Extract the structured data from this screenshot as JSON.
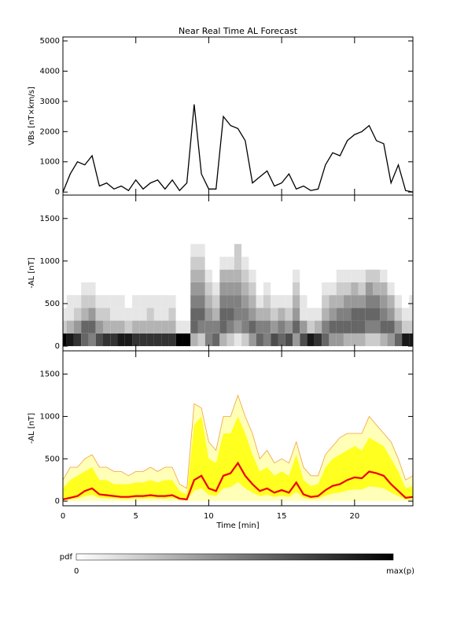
{
  "chart_data": [
    {
      "type": "line",
      "title": "Near Real Time AL Forecast",
      "ylabel": "VBs [nT×km/s]",
      "x": [
        0,
        0.5,
        1,
        1.5,
        2,
        2.5,
        3,
        3.5,
        4,
        4.5,
        5,
        5.5,
        6,
        6.5,
        7,
        7.5,
        8,
        8.5,
        9,
        9.5,
        10,
        10.5,
        11,
        11.5,
        12,
        12.5,
        13,
        13.5,
        14,
        14.5,
        15,
        15.5,
        16,
        16.5,
        17,
        17.5,
        18,
        18.5,
        19,
        19.5,
        20,
        20.5,
        21,
        21.5,
        22,
        22.5,
        23,
        23.5,
        24
      ],
      "series": [
        {
          "color": "#000000",
          "values": [
            0,
            600,
            1000,
            900,
            1200,
            200,
            300,
            100,
            200,
            50,
            400,
            100,
            300,
            400,
            100,
            400,
            50,
            300,
            2900,
            600,
            100,
            100,
            2500,
            2200,
            2100,
            1700,
            300,
            500,
            700,
            200,
            300,
            600,
            100,
            200,
            50,
            100,
            900,
            1300,
            1200,
            1700,
            1900,
            2000,
            2200,
            1700,
            1600,
            300,
            900,
            50,
            0
          ]
        }
      ],
      "xlim": [
        0,
        24
      ],
      "xticks": [
        0,
        5,
        10,
        15,
        20
      ],
      "ylim": [
        -100,
        5130
      ],
      "yticks": [
        0,
        1000,
        2000,
        3000,
        4000,
        5000
      ]
    },
    {
      "type": "heatmap",
      "ylabel": "-AL [nT]",
      "x": [
        0,
        0.5,
        1,
        1.5,
        2,
        2.5,
        3,
        3.5,
        4,
        4.5,
        5,
        5.5,
        6,
        6.5,
        7,
        7.5,
        8,
        8.5,
        9,
        9.5,
        10,
        10.5,
        11,
        11.5,
        12,
        12.5,
        13,
        13.5,
        14,
        14.5,
        15,
        15.5,
        16,
        16.5,
        17,
        17.5,
        18,
        18.5,
        19,
        19.5,
        20,
        20.5,
        21,
        21.5,
        22,
        22.5,
        23,
        23.5,
        24
      ],
      "ybins": [
        0,
        150,
        300,
        450,
        600,
        750,
        900,
        1050,
        1200
      ],
      "z": [
        [
          1,
          0.9,
          0.8,
          0.6,
          0.5,
          0.7,
          0.8,
          0.8,
          0.9,
          0.9,
          0.8,
          0.8,
          0.8,
          0.8,
          0.8,
          0.8,
          1,
          1,
          0.3,
          0.2,
          0.5,
          0.6,
          0.3,
          0.2,
          0.1,
          0.2,
          0.4,
          0.6,
          0.5,
          0.7,
          0.6,
          0.7,
          0.4,
          0.7,
          0.9,
          0.8,
          0.6,
          0.4,
          0.4,
          0.3,
          0.3,
          0.3,
          0.2,
          0.2,
          0.3,
          0.4,
          0.6,
          0.9,
          0.9
        ],
        [
          0.2,
          0.3,
          0.4,
          0.6,
          0.6,
          0.4,
          0.3,
          0.3,
          0.3,
          0.2,
          0.3,
          0.3,
          0.3,
          0.3,
          0.3,
          0.3,
          0.1,
          0.1,
          0.6,
          0.5,
          0.5,
          0.5,
          0.6,
          0.5,
          0.4,
          0.5,
          0.6,
          0.5,
          0.5,
          0.4,
          0.5,
          0.4,
          0.6,
          0.4,
          0.2,
          0.3,
          0.5,
          0.6,
          0.6,
          0.6,
          0.6,
          0.6,
          0.5,
          0.5,
          0.6,
          0.6,
          0.4,
          0.2,
          0.2
        ],
        [
          0.1,
          0.1,
          0.2,
          0.3,
          0.4,
          0.2,
          0.2,
          0.1,
          0.1,
          0.1,
          0.1,
          0.1,
          0.2,
          0.1,
          0.1,
          0.2,
          0,
          0,
          0.6,
          0.6,
          0.4,
          0.3,
          0.6,
          0.6,
          0.5,
          0.5,
          0.4,
          0.3,
          0.3,
          0.2,
          0.3,
          0.2,
          0.4,
          0.1,
          0.1,
          0.1,
          0.3,
          0.4,
          0.5,
          0.5,
          0.6,
          0.6,
          0.6,
          0.6,
          0.5,
          0.4,
          0.2,
          0.1,
          0.1
        ],
        [
          0,
          0.1,
          0.1,
          0.2,
          0.2,
          0.1,
          0.1,
          0.1,
          0.1,
          0,
          0.1,
          0.1,
          0.1,
          0.1,
          0.1,
          0.1,
          0,
          0,
          0.5,
          0.5,
          0.3,
          0.2,
          0.5,
          0.5,
          0.5,
          0.4,
          0.3,
          0.1,
          0.2,
          0.1,
          0.1,
          0.1,
          0.3,
          0.1,
          0,
          0,
          0.2,
          0.3,
          0.3,
          0.4,
          0.4,
          0.4,
          0.5,
          0.5,
          0.4,
          0.3,
          0.1,
          0,
          0.1
        ],
        [
          0,
          0,
          0,
          0.1,
          0.1,
          0,
          0,
          0,
          0,
          0,
          0,
          0,
          0,
          0,
          0,
          0,
          0,
          0,
          0.4,
          0.4,
          0.2,
          0.1,
          0.4,
          0.4,
          0.4,
          0.3,
          0.2,
          0,
          0.1,
          0,
          0,
          0,
          0.2,
          0,
          0,
          0,
          0.1,
          0.1,
          0.2,
          0.2,
          0.3,
          0.2,
          0.4,
          0.3,
          0.3,
          0.1,
          0,
          0,
          0
        ],
        [
          0,
          0,
          0,
          0,
          0,
          0,
          0,
          0,
          0,
          0,
          0,
          0,
          0,
          0,
          0,
          0,
          0,
          0,
          0.3,
          0.3,
          0.1,
          0,
          0.3,
          0.3,
          0.3,
          0.2,
          0.1,
          0,
          0,
          0,
          0,
          0,
          0.1,
          0,
          0,
          0,
          0,
          0,
          0.1,
          0.1,
          0.1,
          0.1,
          0.2,
          0.2,
          0.1,
          0,
          0,
          0,
          0
        ],
        [
          0,
          0,
          0,
          0,
          0,
          0,
          0,
          0,
          0,
          0,
          0,
          0,
          0,
          0,
          0,
          0,
          0,
          0,
          0.2,
          0.2,
          0,
          0,
          0.1,
          0.1,
          0.2,
          0.1,
          0,
          0,
          0,
          0,
          0,
          0,
          0,
          0,
          0,
          0,
          0,
          0,
          0,
          0,
          0,
          0,
          0,
          0,
          0,
          0,
          0,
          0,
          0
        ],
        [
          0,
          0,
          0,
          0,
          0,
          0,
          0,
          0,
          0,
          0,
          0,
          0,
          0,
          0,
          0,
          0,
          0,
          0,
          0.1,
          0.1,
          0,
          0,
          0,
          0,
          0.2,
          0,
          0,
          0,
          0,
          0,
          0,
          0,
          0,
          0,
          0,
          0,
          0,
          0,
          0,
          0,
          0,
          0,
          0,
          0,
          0,
          0,
          0,
          0,
          0
        ]
      ],
      "xlim": [
        0,
        24
      ],
      "xticks": [
        0,
        5,
        10,
        15,
        20
      ],
      "ylim": [
        -55,
        1775
      ],
      "yticks": [
        0,
        500,
        1000,
        1500
      ]
    },
    {
      "type": "band",
      "ylabel": "-AL [nT]",
      "xlabel": "Time [min]",
      "xtick_labels": true,
      "x": [
        0,
        0.5,
        1,
        1.5,
        2,
        2.5,
        3,
        3.5,
        4,
        4.5,
        5,
        5.5,
        6,
        6.5,
        7,
        7.5,
        8,
        8.5,
        9,
        9.5,
        10,
        10.5,
        11,
        11.5,
        12,
        12.5,
        13,
        13.5,
        14,
        14.5,
        15,
        15.5,
        16,
        16.5,
        17,
        17.5,
        18,
        18.5,
        19,
        19.5,
        20,
        20.5,
        21,
        21.5,
        22,
        22.5,
        23,
        23.5,
        24
      ],
      "outer": {
        "color": "#ffffb8",
        "edge_color": "#f0a040",
        "values": [
          250,
          400,
          400,
          500,
          550,
          400,
          400,
          350,
          350,
          300,
          350,
          350,
          400,
          350,
          400,
          400,
          200,
          150,
          1150,
          1100,
          700,
          600,
          1000,
          1000,
          1250,
          1000,
          800,
          500,
          600,
          450,
          500,
          450,
          700,
          400,
          300,
          300,
          550,
          650,
          750,
          800,
          800,
          800,
          1000,
          900,
          800,
          700,
          500,
          250,
          300
        ]
      },
      "band": {
        "color": "#ffff20",
        "upper": [
          150,
          250,
          300,
          350,
          400,
          250,
          250,
          200,
          200,
          200,
          220,
          220,
          250,
          220,
          250,
          250,
          120,
          80,
          900,
          1000,
          500,
          450,
          800,
          800,
          1000,
          800,
          550,
          350,
          400,
          300,
          350,
          300,
          550,
          250,
          180,
          200,
          400,
          500,
          550,
          600,
          650,
          600,
          750,
          700,
          650,
          500,
          350,
          150,
          180
        ],
        "lower": [
          10,
          20,
          30,
          60,
          75,
          40,
          35,
          30,
          25,
          25,
          30,
          30,
          35,
          30,
          30,
          35,
          15,
          10,
          125,
          150,
          75,
          60,
          150,
          165,
          225,
          150,
          100,
          60,
          75,
          50,
          65,
          50,
          110,
          40,
          25,
          30,
          65,
          90,
          100,
          125,
          140,
          135,
          175,
          165,
          150,
          100,
          60,
          20,
          25
        ]
      },
      "series": [
        {
          "color": "#ee0000",
          "values": [
            20,
            40,
            60,
            120,
            150,
            80,
            70,
            60,
            50,
            50,
            60,
            60,
            70,
            60,
            60,
            70,
            30,
            20,
            250,
            300,
            150,
            120,
            300,
            330,
            450,
            300,
            200,
            120,
            150,
            100,
            130,
            100,
            220,
            80,
            50,
            60,
            130,
            180,
            200,
            250,
            280,
            270,
            350,
            330,
            300,
            200,
            120,
            40,
            50
          ]
        }
      ],
      "xlim": [
        0,
        24
      ],
      "xticks": [
        0,
        5,
        10,
        15,
        20
      ],
      "ylim": [
        -55,
        1775
      ],
      "yticks": [
        0,
        500,
        1000,
        1500
      ]
    }
  ],
  "colorbar": {
    "label": "pdf",
    "min_label": "0",
    "max_label": "max(p)"
  }
}
